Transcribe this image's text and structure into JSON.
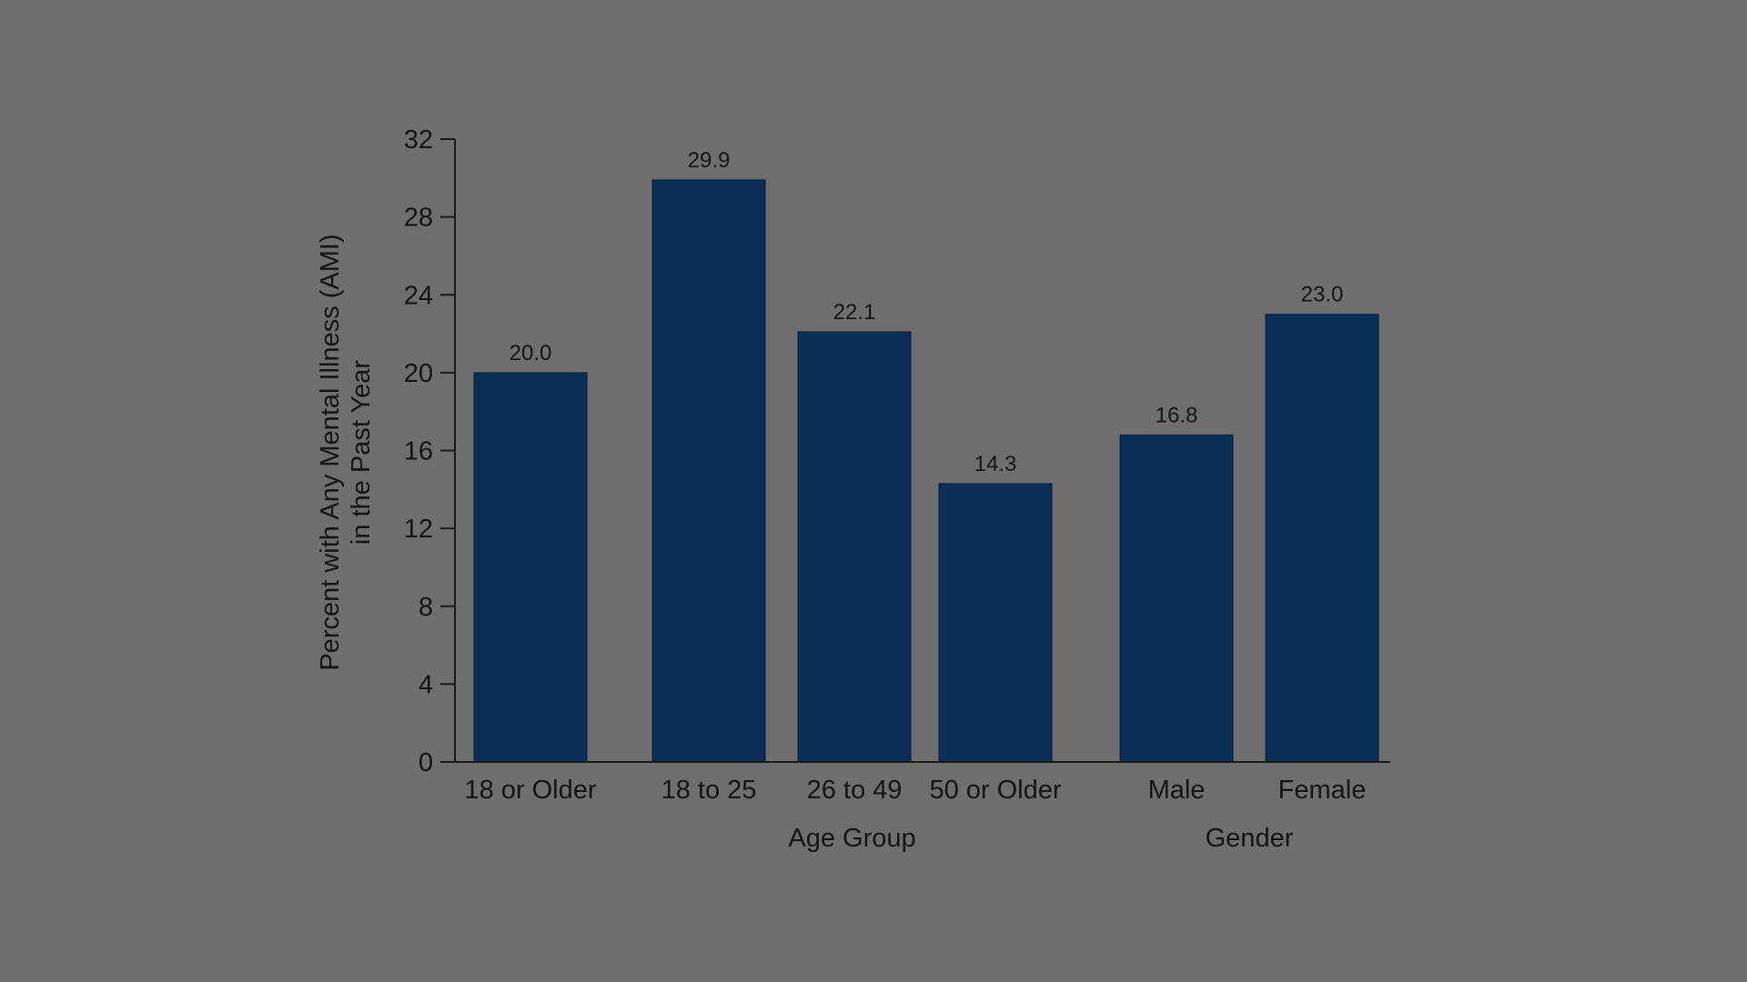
{
  "chart_data": {
    "type": "bar",
    "categories": [
      "18 or Older",
      "18 to 25",
      "26 to 49",
      "50 or Older",
      "Male",
      "Female"
    ],
    "values": [
      20.0,
      29.9,
      22.1,
      14.3,
      16.8,
      23.0
    ],
    "value_labels": [
      "20.0",
      "29.9",
      "22.1",
      "14.3",
      "16.8",
      "23.0"
    ],
    "groups": [
      {
        "label": "Age Group",
        "categories": [
          "18 to 25",
          "26 to 49",
          "50 or Older"
        ]
      },
      {
        "label": "Gender",
        "categories": [
          "Male",
          "Female"
        ]
      }
    ],
    "ylabel_lines": [
      "Percent with Any Mental Illness (AMI)",
      "in the Past Year"
    ],
    "ylim": [
      0,
      32
    ],
    "yticks": [
      0,
      4,
      8,
      12,
      16,
      20,
      24,
      28,
      32
    ],
    "bar_color": "#0b2f57",
    "background_color": "#6f6f6f",
    "text_color": "#151515",
    "grid": false,
    "legend": "none"
  }
}
